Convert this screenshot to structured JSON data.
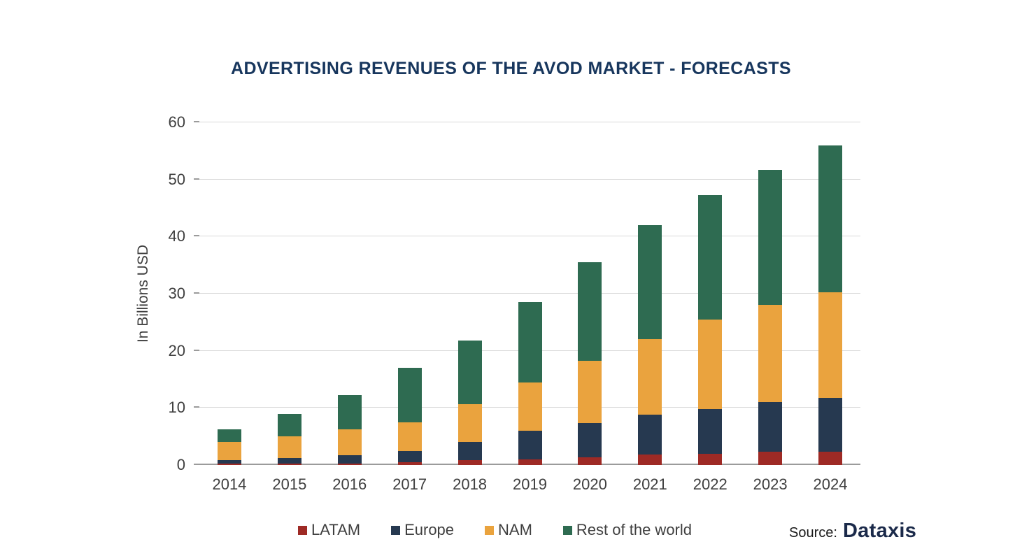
{
  "title": "ADVERTISING REVENUES OF THE AVOD MARKET - FORECASTS",
  "source": {
    "label": "Source:",
    "name": "Dataxis"
  },
  "colors": {
    "title_text": "#17365d",
    "axis_text": "#3f3f3f",
    "gridline": "#d9d9d9",
    "axis_line": "#9b9b9b"
  },
  "chart_data": {
    "type": "bar",
    "stacked": true,
    "title": "ADVERTISING REVENUES OF THE AVOD MARKET - FORECASTS",
    "xlabel": "",
    "ylabel": "In Billions USD",
    "ylim": [
      0,
      60
    ],
    "yticks": [
      0,
      10,
      20,
      30,
      40,
      50,
      60
    ],
    "grid": true,
    "legend_position": "bottom",
    "categories": [
      "2014",
      "2015",
      "2016",
      "2017",
      "2018",
      "2019",
      "2020",
      "2021",
      "2022",
      "2023",
      "2024"
    ],
    "series": [
      {
        "name": "LATAM",
        "color": "#9e2a25",
        "values": [
          0.2,
          0.3,
          0.3,
          0.5,
          0.8,
          1.0,
          1.4,
          1.8,
          2.0,
          2.3,
          2.3
        ]
      },
      {
        "name": "Europe",
        "color": "#263950",
        "values": [
          0.6,
          0.9,
          1.4,
          2.0,
          3.2,
          5.0,
          5.9,
          7.0,
          7.8,
          8.7,
          9.5
        ]
      },
      {
        "name": "NAM",
        "color": "#eaa33e",
        "values": [
          3.2,
          3.8,
          4.5,
          5.0,
          6.7,
          8.5,
          10.9,
          13.2,
          15.7,
          17.0,
          18.5
        ]
      },
      {
        "name": "Rest of the world",
        "color": "#2e6b51",
        "values": [
          2.2,
          4.0,
          6.1,
          9.5,
          11.1,
          14.0,
          17.3,
          20.0,
          21.8,
          23.7,
          25.7
        ]
      }
    ],
    "totals": [
      6.2,
      9.0,
      12.3,
      17.0,
      21.8,
      28.5,
      35.5,
      42.0,
      47.3,
      51.7,
      56.0
    ]
  }
}
